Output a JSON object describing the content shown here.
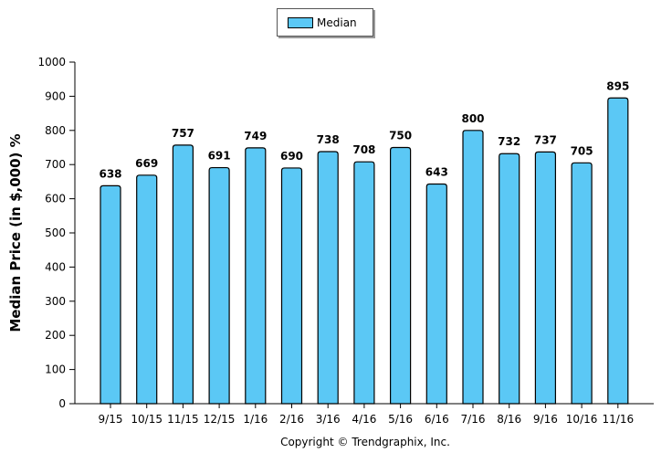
{
  "chart_data": {
    "type": "bar",
    "categories": [
      "9/15",
      "10/15",
      "11/15",
      "12/15",
      "1/16",
      "2/16",
      "3/16",
      "4/16",
      "5/16",
      "6/16",
      "7/16",
      "8/16",
      "9/16",
      "10/16",
      "11/16"
    ],
    "series": [
      {
        "name": "Median",
        "values": [
          638,
          669,
          757,
          691,
          749,
          690,
          738,
          708,
          750,
          643,
          800,
          732,
          737,
          705,
          895
        ]
      }
    ],
    "ylabel": "Median Price (in $,000) %",
    "xlabel": "",
    "ylim": [
      0,
      1000
    ],
    "yticks": [
      "0",
      "100",
      "200",
      "300",
      "400",
      "500",
      "600",
      "700",
      "800",
      "900",
      "1000"
    ],
    "legend_position": "top-center",
    "grid": false,
    "bar_color": "#5bc8f5"
  },
  "footer": {
    "copyright": "Copyright © Trendgraphix, Inc."
  }
}
